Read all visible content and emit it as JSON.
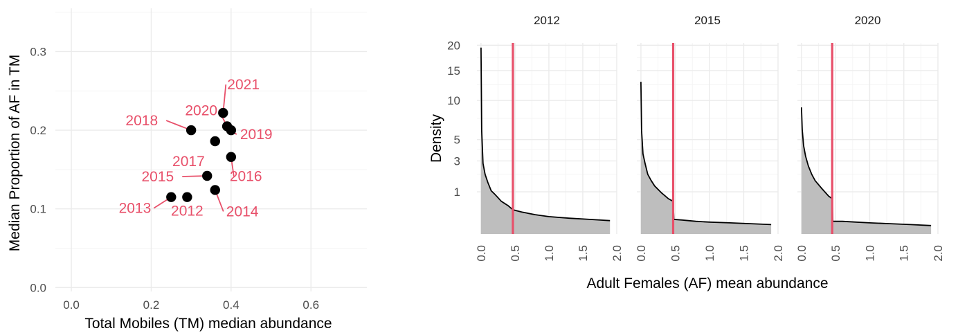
{
  "chart_data": [
    {
      "type": "scatter",
      "xlabel": "Total Mobiles (TM) median abundance",
      "ylabel": "Median Proportion of AF in TM",
      "xlim": [
        -0.04,
        0.74
      ],
      "ylim": [
        -0.005,
        0.355
      ],
      "xticks": [
        0.0,
        0.2,
        0.4,
        0.6
      ],
      "xtick_labels": [
        "0.0",
        "0.2",
        "0.4",
        "0.6"
      ],
      "yticks": [
        0.0,
        0.1,
        0.2,
        0.3
      ],
      "ytick_labels": [
        "0.0",
        "0.1",
        "0.2",
        "0.3"
      ],
      "grid": true,
      "point_color": "#000000",
      "label_color": "#e8506a",
      "points": [
        {
          "label": "2012",
          "x": 0.29,
          "y": 0.115
        },
        {
          "label": "2013",
          "x": 0.25,
          "y": 0.115
        },
        {
          "label": "2014",
          "x": 0.36,
          "y": 0.124
        },
        {
          "label": "2015",
          "x": 0.34,
          "y": 0.142
        },
        {
          "label": "2016",
          "x": 0.4,
          "y": 0.166
        },
        {
          "label": "2017",
          "x": 0.36,
          "y": 0.186
        },
        {
          "label": "2018",
          "x": 0.3,
          "y": 0.2
        },
        {
          "label": "2019",
          "x": 0.4,
          "y": 0.2
        },
        {
          "label": "2020",
          "x": 0.39,
          "y": 0.205
        },
        {
          "label": "2021",
          "x": 0.38,
          "y": 0.222
        }
      ]
    },
    {
      "type": "area",
      "xlabel": "Adult Females (AF) mean abundance",
      "ylabel": "Density",
      "y_scale": "sqrt",
      "xlim": [
        -0.06,
        2.0
      ],
      "ylim": [
        0,
        20.5
      ],
      "xticks": [
        0.0,
        0.5,
        1.0,
        1.5,
        2.0
      ],
      "xtick_labels": [
        "0.0",
        "0.5",
        "1.0",
        "1.5",
        "2.0"
      ],
      "yticks": [
        1,
        3,
        5,
        10,
        15,
        20
      ],
      "ytick_labels": [
        "1",
        "3",
        "5",
        "10",
        "15",
        "20"
      ],
      "grid": true,
      "fill_color": "#bebebe",
      "line_color": "#000000",
      "vline_color": "#e8506a",
      "facets": [
        {
          "title": "2012",
          "vline": 0.47,
          "x": [
            0,
            0.01,
            0.03,
            0.06,
            0.1,
            0.15,
            0.2,
            0.3,
            0.4,
            0.47,
            0.6,
            0.8,
            1.0,
            1.3,
            1.6,
            1.9
          ],
          "y": [
            19.5,
            6.0,
            2.8,
            2.0,
            1.5,
            1.05,
            0.9,
            0.6,
            0.45,
            0.33,
            0.27,
            0.21,
            0.17,
            0.14,
            0.12,
            0.1
          ]
        },
        {
          "title": "2015",
          "vline": 0.47,
          "x": [
            0,
            0.01,
            0.03,
            0.06,
            0.1,
            0.15,
            0.2,
            0.3,
            0.4,
            0.47,
            0.48,
            0.6,
            0.8,
            1.0,
            1.3,
            1.6,
            1.9
          ],
          "y": [
            13.0,
            6.0,
            3.6,
            2.8,
            2.0,
            1.6,
            1.3,
            0.95,
            0.7,
            0.6,
            0.12,
            0.11,
            0.09,
            0.08,
            0.07,
            0.06,
            0.05
          ]
        },
        {
          "title": "2020",
          "vline": 0.45,
          "x": [
            0,
            0.01,
            0.03,
            0.06,
            0.1,
            0.15,
            0.2,
            0.3,
            0.4,
            0.45,
            0.46,
            0.6,
            0.8,
            1.0,
            1.3,
            1.6,
            1.9
          ],
          "y": [
            9.0,
            6.2,
            4.4,
            3.4,
            2.6,
            2.0,
            1.6,
            1.15,
            0.8,
            0.7,
            0.09,
            0.09,
            0.08,
            0.07,
            0.06,
            0.05,
            0.04
          ]
        }
      ]
    }
  ]
}
